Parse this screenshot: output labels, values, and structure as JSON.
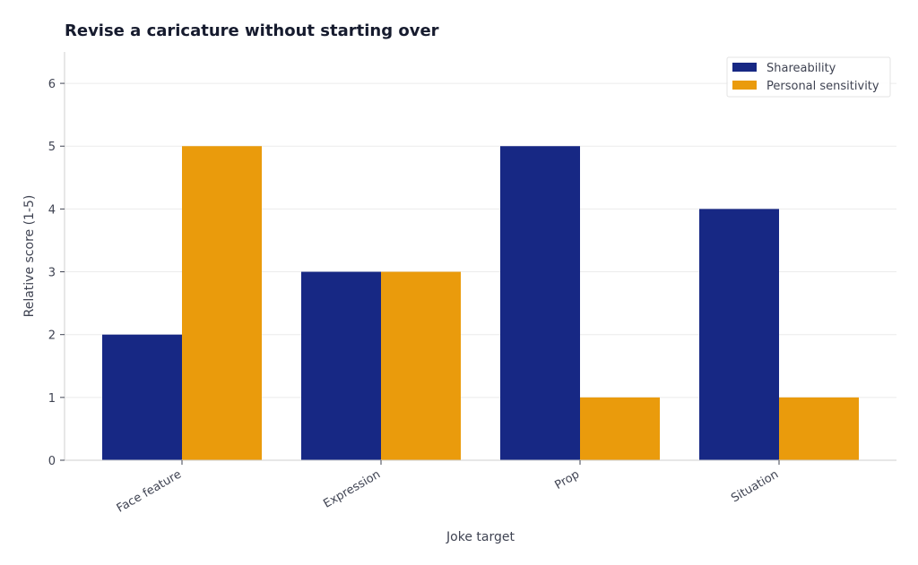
{
  "chart_data": {
    "type": "bar",
    "title": "Revise a caricature without starting over",
    "xlabel": "Joke target",
    "ylabel": "Relative score (1-5)",
    "categories": [
      "Face feature",
      "Expression",
      "Prop",
      "Situation"
    ],
    "series": [
      {
        "name": "Shareability",
        "color": "#172884",
        "values": [
          2,
          3,
          5,
          4
        ]
      },
      {
        "name": "Personal sensitivity",
        "color": "#ea9b0c",
        "values": [
          5,
          3,
          1,
          1
        ]
      }
    ],
    "ylim": [
      0,
      6.5
    ],
    "yticks": [
      0,
      1,
      2,
      3,
      4,
      5,
      6
    ],
    "grid": true,
    "legend_position": "top-right"
  }
}
